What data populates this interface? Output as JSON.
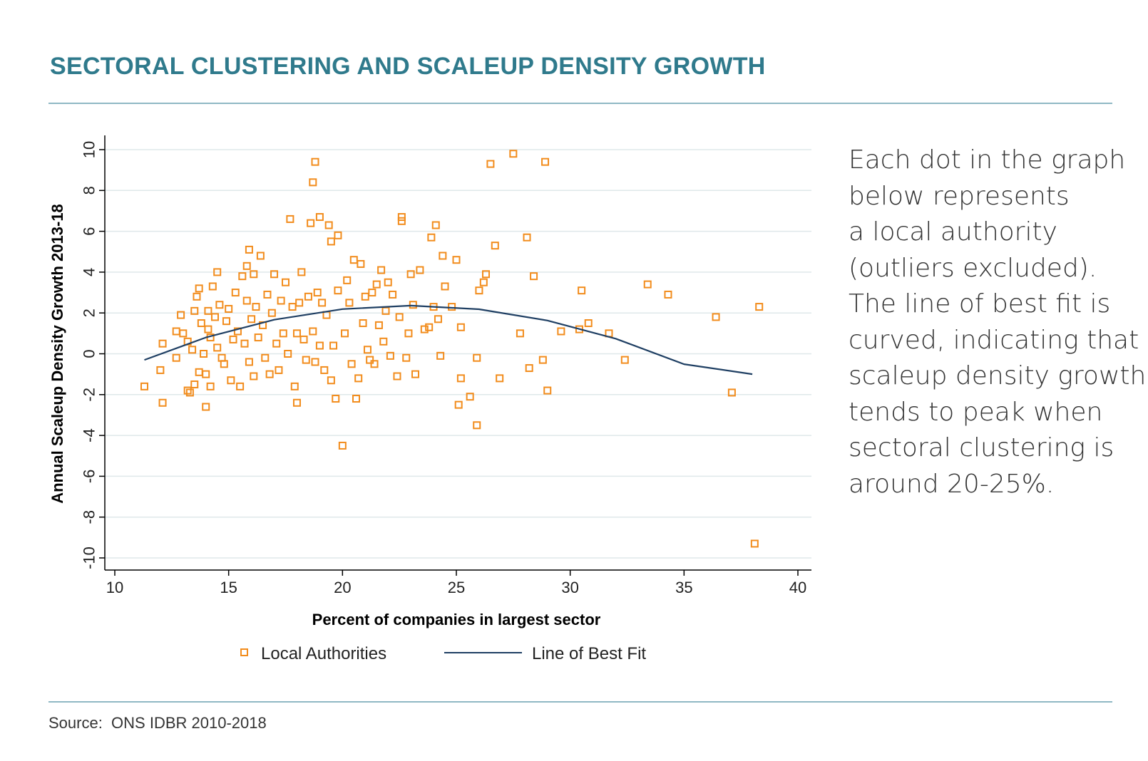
{
  "header": {
    "title": "SECTORAL CLUSTERING AND SCALEUP DENSITY GROWTH"
  },
  "side_text": {
    "lines": [
      "Each dot in the graph",
      "below represents",
      "a local authority",
      "(outliers excluded).",
      "The line of best fit is",
      "curved, indicating that",
      "scaleup density growth",
      "tends to peak when",
      "sectoral clustering is",
      "around 20-25%."
    ]
  },
  "footer": {
    "source": "Source:  ONS IDBR 2010-2018"
  },
  "colors": {
    "title": "#2f7a8c",
    "points": "#f28c1c",
    "fit_line": "#1f3f63",
    "grid": "#dfe8ea",
    "rule": "#8fb8c4"
  },
  "chart_data": {
    "type": "scatter",
    "xlabel": "Percent of companies in largest sector",
    "ylabel": "Annual Scaleup Density Growth 2013-18",
    "xlim": [
      10,
      40
    ],
    "ylim": [
      -10,
      10
    ],
    "xticks": [
      "10",
      "15",
      "20",
      "25",
      "30",
      "35",
      "40"
    ],
    "yticks": [
      "-10",
      "-8",
      "-6",
      "-4",
      "-2",
      "0",
      "2",
      "4",
      "6",
      "8",
      "10"
    ],
    "grid": "horizontal",
    "legend_position": "bottom",
    "legend": [
      "Local Authorities",
      "Line of Best Fit"
    ],
    "series": [
      {
        "name": "Local Authorities",
        "marker": "hollow-square",
        "points": [
          [
            11.3,
            -1.6
          ],
          [
            12.0,
            -0.8
          ],
          [
            12.1,
            0.5
          ],
          [
            12.1,
            -2.4
          ],
          [
            12.7,
            -0.2
          ],
          [
            12.7,
            1.1
          ],
          [
            12.9,
            1.9
          ],
          [
            13.0,
            1.0
          ],
          [
            13.2,
            0.6
          ],
          [
            13.2,
            -1.8
          ],
          [
            13.3,
            -1.9
          ],
          [
            13.4,
            0.2
          ],
          [
            13.5,
            2.1
          ],
          [
            13.5,
            -1.5
          ],
          [
            13.6,
            2.8
          ],
          [
            13.7,
            3.2
          ],
          [
            13.7,
            -0.9
          ],
          [
            13.8,
            1.5
          ],
          [
            13.9,
            0.0
          ],
          [
            14.0,
            -1.0
          ],
          [
            14.0,
            -2.6
          ],
          [
            14.1,
            1.2
          ],
          [
            14.1,
            2.1
          ],
          [
            14.2,
            0.8
          ],
          [
            14.2,
            -1.6
          ],
          [
            14.3,
            3.3
          ],
          [
            14.4,
            1.8
          ],
          [
            14.5,
            4.0
          ],
          [
            14.5,
            0.3
          ],
          [
            14.6,
            2.4
          ],
          [
            14.7,
            -0.2
          ],
          [
            14.8,
            -0.5
          ],
          [
            14.9,
            1.6
          ],
          [
            15.0,
            2.2
          ],
          [
            15.1,
            -1.3
          ],
          [
            15.2,
            0.7
          ],
          [
            15.3,
            3.0
          ],
          [
            15.4,
            1.1
          ],
          [
            15.5,
            -1.6
          ],
          [
            15.6,
            3.8
          ],
          [
            15.7,
            0.5
          ],
          [
            15.8,
            4.3
          ],
          [
            15.8,
            2.6
          ],
          [
            15.9,
            -0.4
          ],
          [
            15.9,
            5.1
          ],
          [
            16.0,
            1.7
          ],
          [
            16.1,
            -1.1
          ],
          [
            16.1,
            3.9
          ],
          [
            16.2,
            2.3
          ],
          [
            16.3,
            0.8
          ],
          [
            16.4,
            4.8
          ],
          [
            16.5,
            1.4
          ],
          [
            16.6,
            -0.2
          ],
          [
            16.7,
            2.9
          ],
          [
            16.8,
            -1.0
          ],
          [
            16.9,
            2.0
          ],
          [
            17.0,
            3.9
          ],
          [
            17.1,
            0.5
          ],
          [
            17.2,
            -0.8
          ],
          [
            17.3,
            2.6
          ],
          [
            17.4,
            1.0
          ],
          [
            17.5,
            3.5
          ],
          [
            17.6,
            0.0
          ],
          [
            17.7,
            6.6
          ],
          [
            17.8,
            2.3
          ],
          [
            17.9,
            -1.6
          ],
          [
            18.0,
            -2.4
          ],
          [
            18.0,
            1.0
          ],
          [
            18.1,
            2.5
          ],
          [
            18.2,
            4.0
          ],
          [
            18.3,
            0.7
          ],
          [
            18.4,
            -0.3
          ],
          [
            18.5,
            2.8
          ],
          [
            18.6,
            6.4
          ],
          [
            18.7,
            8.4
          ],
          [
            18.8,
            9.4
          ],
          [
            18.7,
            1.1
          ],
          [
            18.8,
            -0.4
          ],
          [
            18.9,
            3.0
          ],
          [
            19.0,
            6.7
          ],
          [
            19.0,
            0.4
          ],
          [
            19.1,
            2.5
          ],
          [
            19.2,
            -0.8
          ],
          [
            19.3,
            1.9
          ],
          [
            19.4,
            6.3
          ],
          [
            19.5,
            5.5
          ],
          [
            19.5,
            -1.3
          ],
          [
            19.6,
            0.4
          ],
          [
            19.7,
            -2.2
          ],
          [
            19.8,
            5.8
          ],
          [
            19.8,
            3.1
          ],
          [
            20.0,
            -4.5
          ],
          [
            20.1,
            1.0
          ],
          [
            20.2,
            3.6
          ],
          [
            20.3,
            2.5
          ],
          [
            20.4,
            -0.5
          ],
          [
            20.5,
            4.6
          ],
          [
            20.6,
            -2.2
          ],
          [
            20.7,
            -1.2
          ],
          [
            20.8,
            4.4
          ],
          [
            20.9,
            1.5
          ],
          [
            21.0,
            2.8
          ],
          [
            21.1,
            0.2
          ],
          [
            21.2,
            -0.3
          ],
          [
            21.3,
            3.0
          ],
          [
            21.4,
            -0.5
          ],
          [
            21.5,
            3.4
          ],
          [
            21.6,
            1.4
          ],
          [
            21.7,
            4.1
          ],
          [
            21.8,
            0.6
          ],
          [
            21.9,
            2.1
          ],
          [
            22.0,
            3.5
          ],
          [
            22.1,
            -0.1
          ],
          [
            22.2,
            2.9
          ],
          [
            22.4,
            -1.1
          ],
          [
            22.5,
            1.8
          ],
          [
            22.6,
            6.7
          ],
          [
            22.6,
            6.5
          ],
          [
            22.8,
            -0.2
          ],
          [
            22.9,
            1.0
          ],
          [
            23.0,
            3.9
          ],
          [
            23.1,
            2.4
          ],
          [
            23.2,
            -1.0
          ],
          [
            23.4,
            4.1
          ],
          [
            23.6,
            1.2
          ],
          [
            23.8,
            1.3
          ],
          [
            23.9,
            5.7
          ],
          [
            24.0,
            2.3
          ],
          [
            24.1,
            6.3
          ],
          [
            24.2,
            1.7
          ],
          [
            24.3,
            -0.1
          ],
          [
            24.4,
            4.8
          ],
          [
            24.5,
            3.3
          ],
          [
            24.8,
            2.3
          ],
          [
            25.0,
            4.6
          ],
          [
            25.1,
            -2.5
          ],
          [
            25.2,
            -1.2
          ],
          [
            25.2,
            1.3
          ],
          [
            25.6,
            -2.1
          ],
          [
            25.9,
            -0.2
          ],
          [
            25.9,
            -3.5
          ],
          [
            26.0,
            3.1
          ],
          [
            26.2,
            3.5
          ],
          [
            26.3,
            3.9
          ],
          [
            26.5,
            9.3
          ],
          [
            26.7,
            5.3
          ],
          [
            26.9,
            -1.2
          ],
          [
            27.5,
            9.8
          ],
          [
            27.8,
            1.0
          ],
          [
            28.1,
            5.7
          ],
          [
            28.2,
            -0.7
          ],
          [
            28.4,
            3.8
          ],
          [
            28.8,
            -0.3
          ],
          [
            28.9,
            9.4
          ],
          [
            29.0,
            -1.8
          ],
          [
            29.6,
            1.1
          ],
          [
            30.4,
            1.2
          ],
          [
            30.5,
            3.1
          ],
          [
            30.8,
            1.5
          ],
          [
            31.7,
            1.0
          ],
          [
            32.4,
            -0.3
          ],
          [
            33.4,
            3.4
          ],
          [
            34.3,
            2.9
          ],
          [
            36.4,
            1.8
          ],
          [
            37.1,
            -1.9
          ],
          [
            38.1,
            -9.3
          ],
          [
            38.3,
            2.3
          ]
        ]
      },
      {
        "name": "Line of Best Fit",
        "type": "quadratic",
        "x": [
          11.3,
          14,
          17,
          20,
          23,
          26,
          29,
          32,
          35,
          38
        ],
        "y": [
          -0.3,
          0.8,
          1.67,
          2.19,
          2.36,
          2.18,
          1.63,
          0.74,
          -0.51,
          -1.0
        ]
      }
    ]
  }
}
